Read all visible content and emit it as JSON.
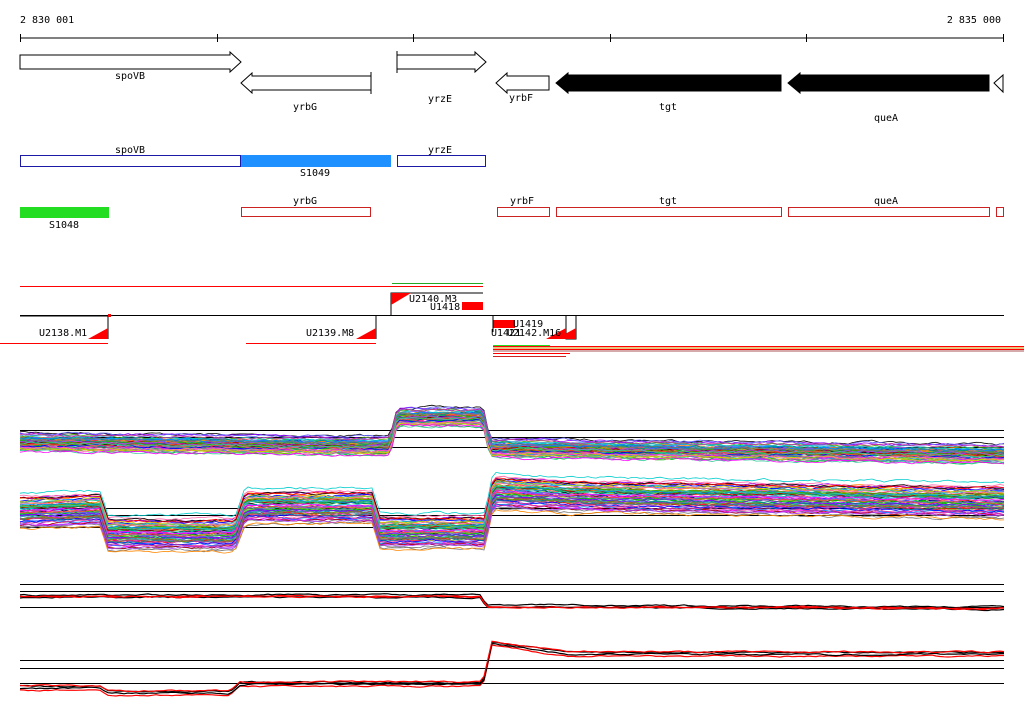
{
  "ruler": {
    "start_label": "2 830 001",
    "end_label": "2 835 000"
  },
  "genes": [
    {
      "name": "spoVB",
      "strand": "+",
      "style": "open"
    },
    {
      "name": "yrbG",
      "strand": "-",
      "style": "open"
    },
    {
      "name": "yrzE",
      "strand": "+",
      "style": "open"
    },
    {
      "name": "yrbF",
      "strand": "-",
      "style": "open"
    },
    {
      "name": "tgt",
      "strand": "-",
      "style": "filled"
    },
    {
      "name": "queA",
      "strand": "-",
      "style": "filled"
    }
  ],
  "segments_upper": [
    {
      "name": "spoVB",
      "style": "outline",
      "color": "#1a1aa6"
    },
    {
      "name": "S1049",
      "style": "filled",
      "color": "#1e90ff"
    },
    {
      "name": "yrzE",
      "style": "outline",
      "color": "#1a1aa6"
    }
  ],
  "segments_lower": [
    {
      "name": "S1048",
      "style": "filled",
      "color": "#22dd22"
    },
    {
      "name": "yrbG",
      "style": "outline",
      "color": "#cc2222"
    },
    {
      "name": "yrbF",
      "style": "outline",
      "color": "#cc2222"
    },
    {
      "name": "tgt",
      "style": "outline",
      "color": "#cc2222"
    },
    {
      "name": "queA",
      "style": "outline",
      "color": "#cc2222"
    }
  ],
  "transcription_units": [
    {
      "name": "U2138.M1"
    },
    {
      "name": "U2139.M8"
    },
    {
      "name": "U2140.M3"
    },
    {
      "name": "U1418"
    },
    {
      "name": "U1419"
    },
    {
      "name": "U1421"
    },
    {
      "name": "U2142.M16"
    }
  ],
  "colors": {
    "gene_outline": "#000000",
    "filled_gene": "#000000",
    "blue_outline": "#1a1aa6",
    "blue_fill": "#1e90ff",
    "green_fill": "#22dd22",
    "red": "#ff0000",
    "dark_red": "#cc2222"
  }
}
